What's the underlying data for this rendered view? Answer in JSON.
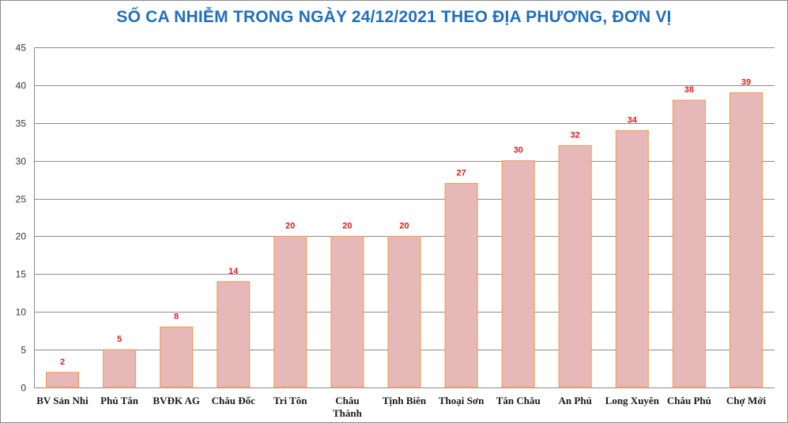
{
  "chart_data": {
    "type": "bar",
    "title": "SỐ CA NHIỄM TRONG NGÀY 24/12/2021 THEO ĐỊA PHƯƠNG, ĐƠN VỊ",
    "categories": [
      "BV Sản Nhi",
      "Phú Tân",
      "BVĐK AG",
      "Châu Đốc",
      "Tri Tôn",
      "Châu Thành",
      "Tịnh Biên",
      "Thoại  Sơn",
      "Tân Châu",
      "An Phú",
      "Long Xuyên",
      "Châu Phú",
      "Chợ Mới"
    ],
    "category_lines": [
      [
        "BV Sản Nhi"
      ],
      [
        "Phú Tân"
      ],
      [
        "BVĐK AG"
      ],
      [
        "Châu Đốc"
      ],
      [
        "Tri Tôn"
      ],
      [
        "Châu",
        "Thành"
      ],
      [
        "Tịnh Biên"
      ],
      [
        "Thoại  Sơn"
      ],
      [
        "Tân Châu"
      ],
      [
        "An Phú"
      ],
      [
        "Long Xuyên"
      ],
      [
        "Châu Phú"
      ],
      [
        "Chợ Mới"
      ]
    ],
    "values": [
      2,
      5,
      8,
      14,
      20,
      20,
      20,
      27,
      30,
      32,
      34,
      38,
      39
    ],
    "data_labels": [
      "2",
      "5",
      "8",
      "14",
      "20",
      "20",
      "20",
      "27",
      "30",
      "32",
      "34",
      "38",
      "39"
    ],
    "yticks": [
      0,
      5,
      10,
      15,
      20,
      25,
      30,
      35,
      40,
      45
    ],
    "ylim": [
      0,
      45
    ],
    "grid": true,
    "legend": "none",
    "colors": {
      "bar_fill": "#e6b8b7",
      "bar_stroke": "#f79646",
      "data_label": "#e01b1b",
      "title": "#1f6fbf",
      "grid": "#8c8c8c"
    }
  }
}
